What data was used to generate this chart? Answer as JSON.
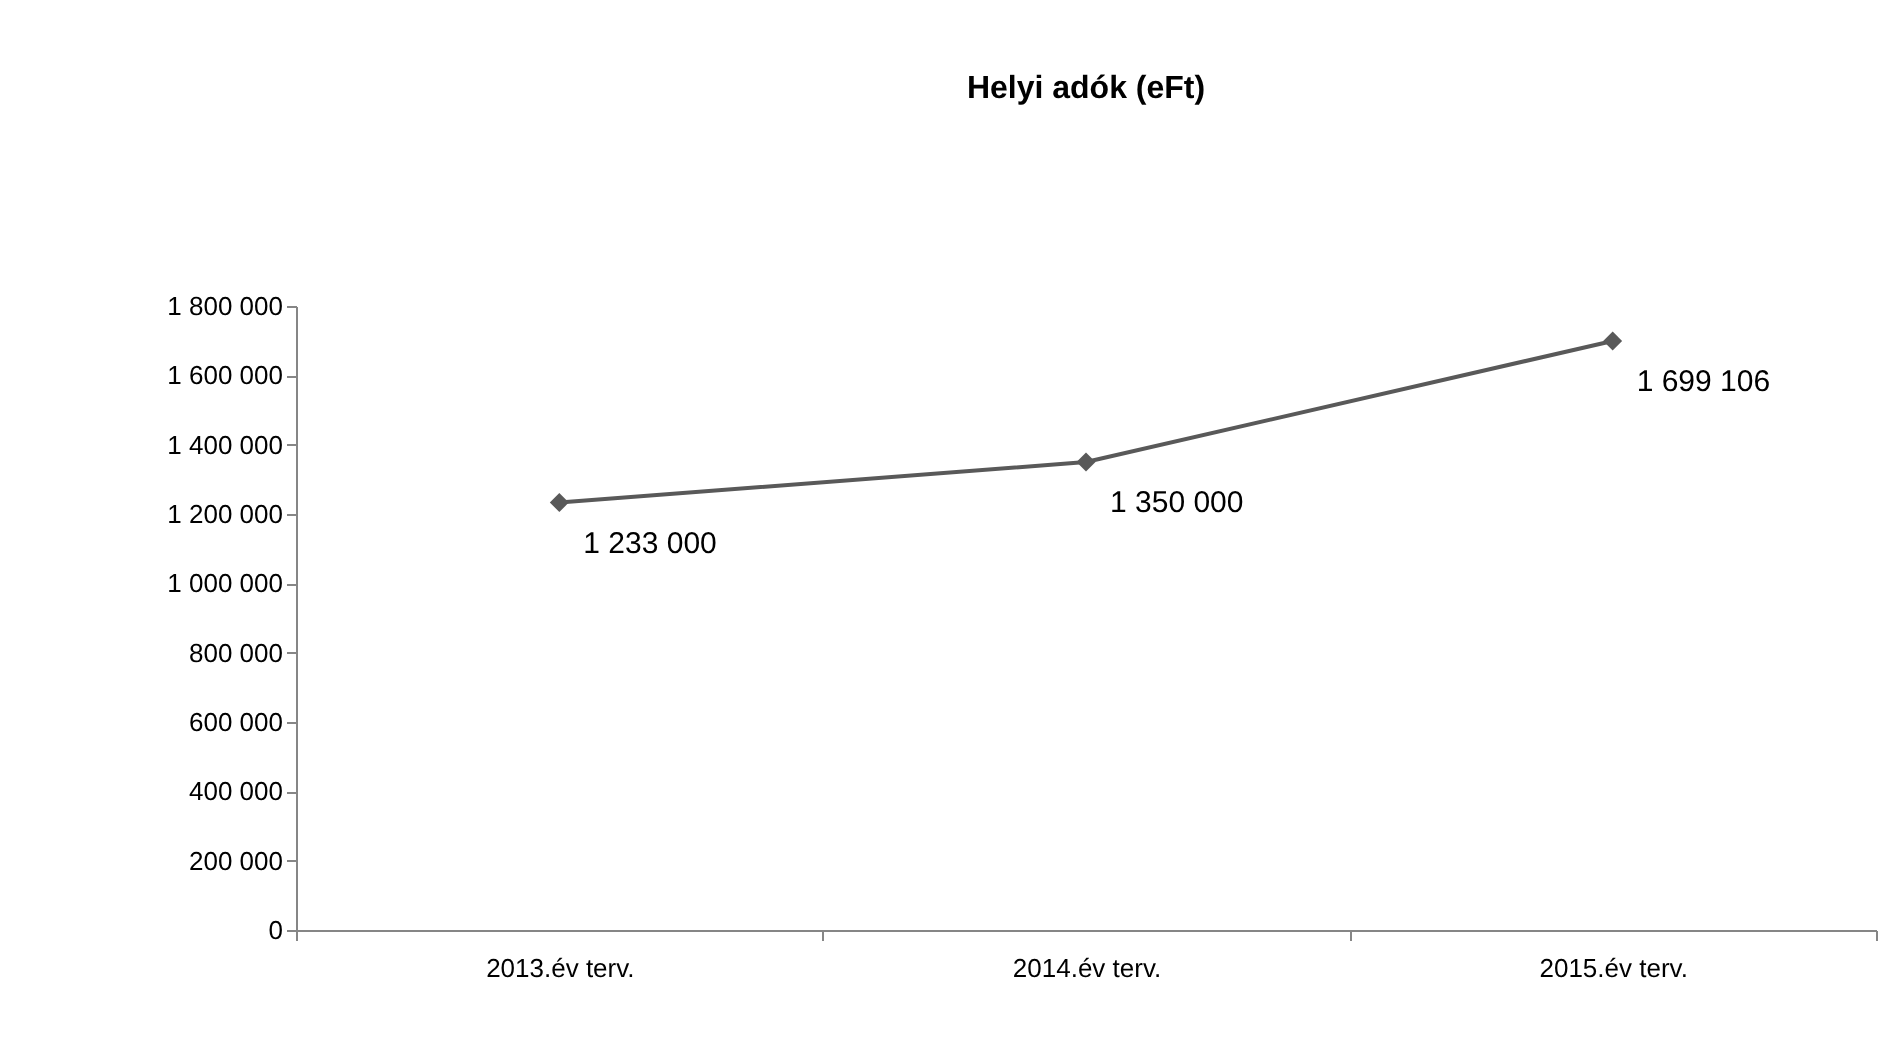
{
  "chart_data": {
    "type": "line",
    "title": "Helyi adók (eFt)",
    "categories": [
      "2013.év terv.",
      "2014.év terv.",
      "2015.év terv."
    ],
    "series": [
      {
        "color": "#595959",
        "values": [
          1233000,
          1350000,
          1699106
        ],
        "value_labels": [
          "1 233 000",
          "1 350 000",
          "1 699 106"
        ]
      }
    ],
    "ylim": [
      0,
      1800000
    ],
    "yticks": [
      {
        "value": 0,
        "label": "0"
      },
      {
        "value": 200000,
        "label": "200 000"
      },
      {
        "value": 400000,
        "label": "400 000"
      },
      {
        "value": 600000,
        "label": "600 000"
      },
      {
        "value": 800000,
        "label": "800 000"
      },
      {
        "value": 1000000,
        "label": "1 000 000"
      },
      {
        "value": 1200000,
        "label": "1 200 000"
      },
      {
        "value": 1400000,
        "label": "1 400 000"
      },
      {
        "value": 1600000,
        "label": "1 600 000"
      },
      {
        "value": 1800000,
        "label": "1 800 000"
      }
    ],
    "grid": false,
    "legend": false,
    "marker": "diamond",
    "line_style": "solid"
  }
}
